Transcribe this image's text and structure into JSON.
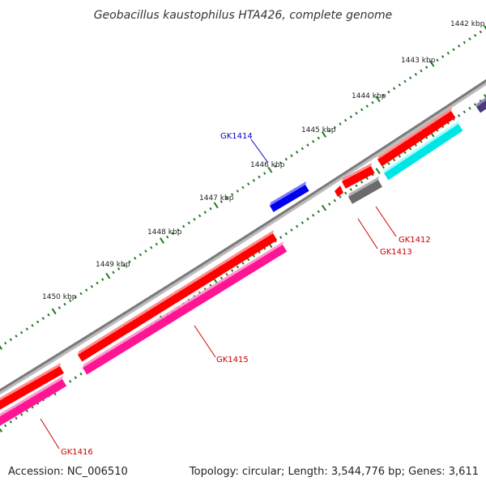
{
  "title": "Geobacillus kaustophilus HTA426, complete genome",
  "colors": {
    "background": "#ffffff",
    "backbone": "#8a8a8a",
    "tick": "#1f7a1f",
    "forward_gene": "#ff0000",
    "reverse_gene": "#ff1493",
    "cyan_gene": "#00e5e5",
    "gray_gene": "#6b6b6b",
    "blue_gene": "#0000ee",
    "purple_gene": "#4b3b7a",
    "label_red": "#cc0000",
    "label_blue": "#0000cc"
  },
  "kbp_labels": [
    "1442 kbp",
    "1443 kbp",
    "1444 kbp",
    "1445 kbp",
    "1446 kbp",
    "1447 kbp",
    "1448 kbp",
    "1449 kbp",
    "1450 kbp"
  ],
  "gene_labels": [
    {
      "id": "gk1412",
      "text": "GK1412",
      "color": "red"
    },
    {
      "id": "gk1413",
      "text": "GK1413",
      "color": "red"
    },
    {
      "id": "gk1414",
      "text": "GK1414",
      "color": "blue"
    },
    {
      "id": "gk1415",
      "text": "GK1415",
      "color": "red"
    },
    {
      "id": "gk1416",
      "text": "GK1416",
      "color": "red"
    }
  ],
  "footer": {
    "accession": "Accession: NC_006510",
    "summary": "Topology: circular; Length: 3,544,776 bp; Genes: 3,611"
  }
}
